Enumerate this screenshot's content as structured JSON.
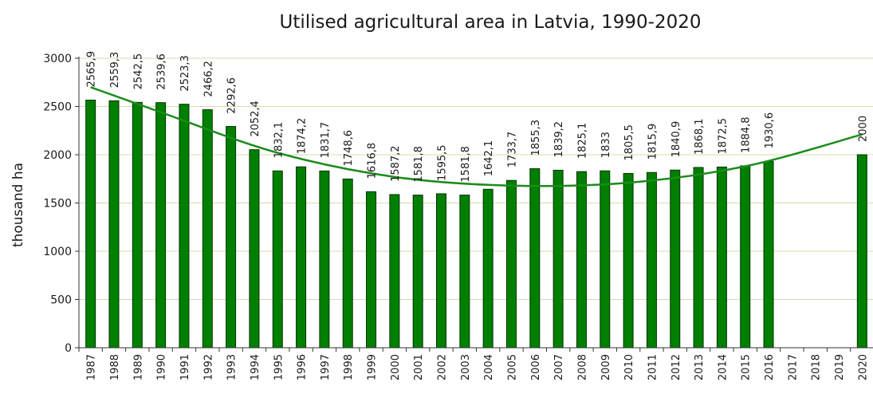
{
  "chart_data": {
    "type": "bar",
    "title": "Utilised agricultural area in Latvia, 1990-2020",
    "ylabel": "thousand ha",
    "xlabel": "",
    "ylim": [
      0,
      3000
    ],
    "yticks": [
      0,
      500,
      1000,
      1500,
      2000,
      2500,
      3000
    ],
    "grid": true,
    "legend": "none",
    "categories": [
      "1987",
      "1988",
      "1989",
      "1990",
      "1991",
      "1992",
      "1993",
      "1994",
      "1995",
      "1996",
      "1997",
      "1998",
      "1999",
      "2000",
      "2001",
      "2002",
      "2003",
      "2004",
      "2005",
      "2006",
      "2007",
      "2008",
      "2009",
      "2010",
      "2011",
      "2012",
      "2013",
      "2014",
      "2015",
      "2016",
      "2017",
      "2018",
      "2019",
      "2020"
    ],
    "values": [
      2565.9,
      2559.3,
      2542.5,
      2539.6,
      2523.3,
      2466.2,
      2292.6,
      2052.4,
      1832.1,
      1874.2,
      1831.7,
      1748.6,
      1616.8,
      1587.2,
      1581.8,
      1595.5,
      1581.8,
      1642.1,
      1733.7,
      1855.3,
      1839.2,
      1825.1,
      1833,
      1805.5,
      1815.9,
      1840.9,
      1868.1,
      1872.5,
      1884.8,
      1930.6,
      null,
      null,
      null,
      2000
    ],
    "data_labels": [
      "2565,9",
      "2559,3",
      "2542,5",
      "2539,6",
      "2523,3",
      "2466,2",
      "2292,6",
      "2052,4",
      "1832,1",
      "1874,2",
      "1831,7",
      "1748,6",
      "1616,8",
      "1587,2",
      "1581,8",
      "1595,5",
      "1581,8",
      "1642,1",
      "1733,7",
      "1855,3",
      "1839,2",
      "1825,1",
      "1833",
      "1805,5",
      "1815,9",
      "1840,9",
      "1868,1",
      "1872,5",
      "1884,8",
      "1930,6",
      "",
      "",
      "",
      "2000"
    ],
    "trendline": {
      "type": "polynomial",
      "x": [
        "1987",
        "1990",
        "1995",
        "2000",
        "2005",
        "2010",
        "2015",
        "2020"
      ],
      "y": [
        2700,
        2440,
        2020,
        1770,
        1680,
        1710,
        1880,
        2210
      ]
    },
    "colors": {
      "bar_fill": "#007f00",
      "bar_stroke": "#003300",
      "trend": "#1a8c1a",
      "grid": "#d9d9b0",
      "axis": "#333333"
    }
  }
}
